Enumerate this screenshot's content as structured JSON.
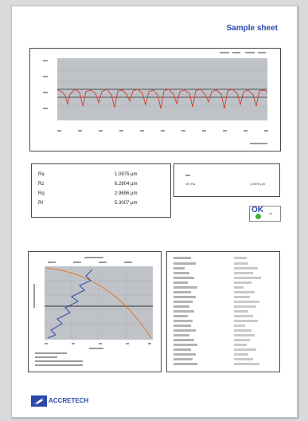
{
  "sheet": {
    "title": "Sample sheet"
  },
  "roughness": {
    "params": [
      {
        "name": "Ra",
        "value": "1.0875 µm"
      },
      {
        "name": "Rz",
        "value": "6.2804 µm"
      },
      {
        "name": "Rq",
        "value": "2.9696 µm"
      },
      {
        "name": "Rt",
        "value": "5.3007 µm"
      }
    ]
  },
  "judge": {
    "label": "OK Ra",
    "value": "1.0875 µm",
    "status": "OK",
    "status_color": "#3fae3f"
  },
  "brand": {
    "logo_text": "ACCRETECH",
    "color": "#2b49a8"
  },
  "colors": {
    "profile": "#d23a2a",
    "curve_blue": "#2b49a8",
    "curve_orange": "#e07a2a",
    "plot_bg": "#bfc3c8"
  }
}
